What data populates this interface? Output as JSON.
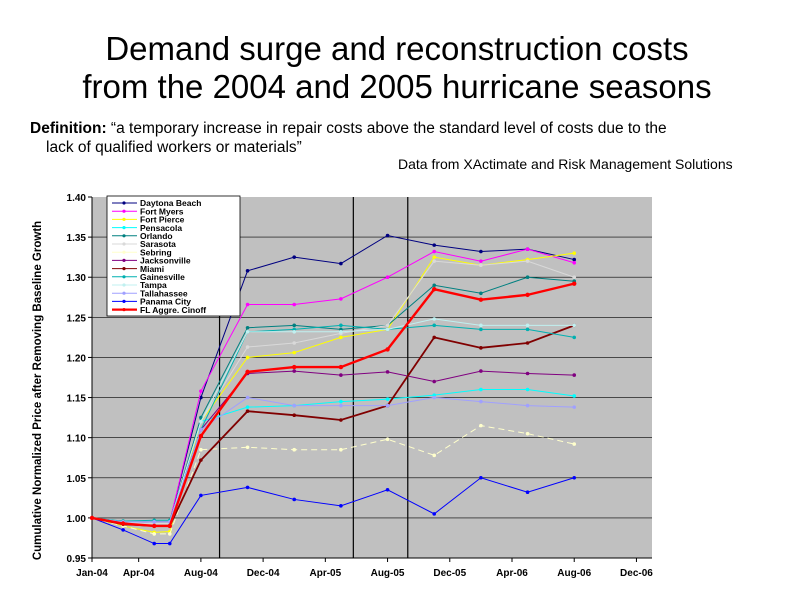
{
  "slide": {
    "title_line1": "Demand surge and reconstruction costs",
    "title_line2": "from the 2004 and 2005 hurricane seasons",
    "definition_label": "Definition:",
    "definition_line1": " “a temporary increase in repair costs above the standard level of costs due to the",
    "definition_line2": "lack of qualified workers or materials”",
    "source_note": "Data from XActimate and Risk Management Solutions"
  },
  "chart_data": {
    "type": "line",
    "title": "",
    "xlabel": "",
    "ylabel": "Cumulative Normalized  Price after Removing Baseline Growth",
    "xlim": [
      0,
      36
    ],
    "ylim": [
      0.95,
      1.4
    ],
    "y_ticks": [
      "0.95",
      "1.00",
      "1.05",
      "1.10",
      "1.15",
      "1.20",
      "1.25",
      "1.30",
      "1.35",
      "1.40"
    ],
    "x_tick_labels": [
      "Jan-04",
      "Apr-04",
      "Aug-04",
      "Dec-04",
      "Apr-05",
      "Aug-05",
      "Dec-05",
      "Apr-06",
      "Aug-06",
      "Dec-06"
    ],
    "x_tick_positions": [
      0,
      3,
      7,
      11,
      15,
      19,
      23,
      27,
      31,
      35
    ],
    "event_lines_x": [
      8.2,
      16.8,
      20.3
    ],
    "x": [
      0,
      2,
      4,
      5,
      7,
      10,
      13,
      16,
      19,
      22,
      25,
      28,
      31
    ],
    "colors": {
      "plot_bg": "#c0c0c0",
      "Daytona Beach": "#000080",
      "Fort Myers": "#ff00ff",
      "Fort Pierce": "#ffff00",
      "Pensacola": "#00ffff",
      "Orlando": "#008080",
      "Sarasota": "#d9d9d9",
      "Sebring": "#ffffcc",
      "Jacksonville": "#800080",
      "Miami": "#800000",
      "Gainesville": "#00b0b0",
      "Tampa": "#c0f0f0",
      "Tallahassee": "#a0a0ff",
      "Panama City": "#0000ff",
      "FL Aggre. Cinoff": "#ff0000"
    },
    "series": [
      {
        "name": "Daytona Beach",
        "values": [
          1.0,
          0.994,
          0.995,
          0.995,
          1.15,
          1.308,
          1.325,
          1.317,
          1.352,
          1.34,
          1.332,
          1.335,
          1.322
        ]
      },
      {
        "name": "Fort Myers",
        "values": [
          1.0,
          0.994,
          0.995,
          0.995,
          1.158,
          1.266,
          1.266,
          1.273,
          1.3,
          1.332,
          1.32,
          1.335,
          1.318
        ]
      },
      {
        "name": "Fort Pierce",
        "values": [
          1.0,
          0.99,
          0.982,
          0.983,
          1.12,
          1.2,
          1.206,
          1.225,
          1.235,
          1.325,
          1.315,
          1.322,
          1.33
        ]
      },
      {
        "name": "Pensacola",
        "values": [
          1.0,
          0.995,
          0.995,
          0.995,
          1.12,
          1.138,
          1.14,
          1.145,
          1.148,
          1.153,
          1.16,
          1.16,
          1.152
        ]
      },
      {
        "name": "Orlando",
        "values": [
          1.0,
          0.995,
          0.995,
          0.995,
          1.125,
          1.237,
          1.24,
          1.235,
          1.24,
          1.29,
          1.28,
          1.3,
          1.295
        ]
      },
      {
        "name": "Sarasota",
        "values": [
          1.0,
          0.994,
          0.993,
          0.993,
          1.12,
          1.213,
          1.218,
          1.23,
          1.24,
          1.32,
          1.315,
          1.32,
          1.3
        ]
      },
      {
        "name": "Sebring",
        "values": [
          1.0,
          0.99,
          0.98,
          0.98,
          1.085,
          1.088,
          1.085,
          1.085,
          1.098,
          1.078,
          1.115,
          1.105,
          1.092
        ]
      },
      {
        "name": "Jacksonville",
        "values": [
          1.0,
          0.995,
          0.995,
          0.995,
          1.11,
          1.18,
          1.183,
          1.178,
          1.182,
          1.17,
          1.183,
          1.18,
          1.178
        ]
      },
      {
        "name": "Miami",
        "values": [
          1.0,
          0.992,
          0.99,
          0.99,
          1.072,
          1.133,
          1.128,
          1.122,
          1.14,
          1.225,
          1.212,
          1.218,
          1.24
        ]
      },
      {
        "name": "Gainesville",
        "values": [
          1.0,
          0.996,
          0.997,
          0.997,
          1.11,
          1.232,
          1.235,
          1.24,
          1.235,
          1.24,
          1.235,
          1.235,
          1.225
        ]
      },
      {
        "name": "Tampa",
        "values": [
          1.0,
          0.995,
          0.995,
          0.995,
          1.12,
          1.232,
          1.232,
          1.232,
          1.235,
          1.248,
          1.24,
          1.24,
          1.24
        ]
      },
      {
        "name": "Tallahassee",
        "values": [
          1.0,
          0.995,
          0.995,
          0.995,
          1.11,
          1.15,
          1.14,
          1.14,
          1.14,
          1.15,
          1.145,
          1.14,
          1.138
        ]
      },
      {
        "name": "Panama City",
        "values": [
          1.0,
          0.985,
          0.968,
          0.968,
          1.028,
          1.038,
          1.023,
          1.015,
          1.035,
          1.005,
          1.05,
          1.032,
          1.05
        ]
      },
      {
        "name": "FL Aggre. Cinoff",
        "values": [
          1.0,
          0.993,
          0.99,
          0.99,
          1.102,
          1.182,
          1.188,
          1.188,
          1.21,
          1.285,
          1.272,
          1.278,
          1.292
        ]
      }
    ]
  }
}
